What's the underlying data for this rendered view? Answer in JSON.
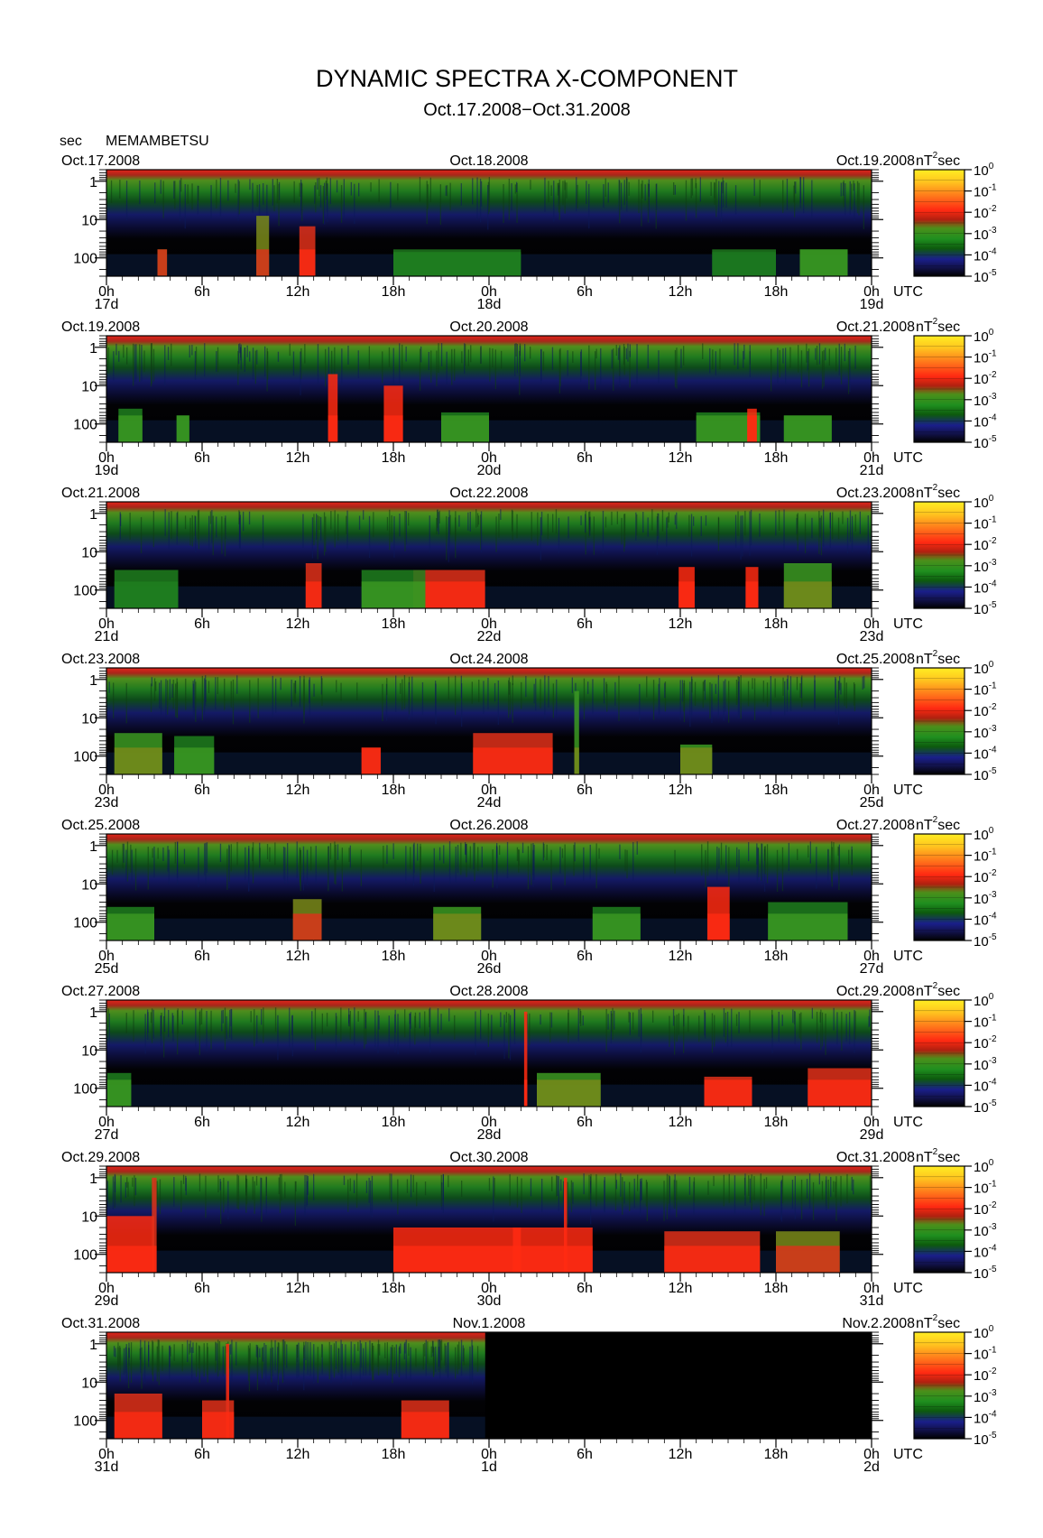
{
  "figure": {
    "title": "DYNAMIC SPECTRA X-COMPONENT",
    "subtitle": "Oct.17.2008−Oct.31.2008",
    "y_unit_label": "sec",
    "station": "MEMAMBETSU",
    "time_zone_label": "UTC",
    "colorbar_unit": "nT",
    "colorbar_unit_exp": "2",
    "colorbar_unit_suffix": "sec"
  },
  "chart_data": {
    "type": "heatmap",
    "title": "DYNAMIC SPECTRA X-COMPONENT",
    "subtitle": "Oct.17.2008−Oct.31.2008",
    "ylabel": "sec",
    "y_scale": "log",
    "y_range_sec": [
      0.5,
      300
    ],
    "y_ticks": [
      {
        "label": "1",
        "value": 1
      },
      {
        "label": "10",
        "value": 10
      },
      {
        "label": "100",
        "value": 100
      }
    ],
    "x_ticks_hours": [
      "0h",
      "6h",
      "12h",
      "18h",
      "0h",
      "6h",
      "12h",
      "18h",
      "0h"
    ],
    "colorbar": {
      "unit": "nT^2 sec",
      "scale": "log",
      "range": [
        1e-05,
        1
      ],
      "tick_mantissa": "10",
      "tick_exponents": [
        "0",
        "-1",
        "-2",
        "-3",
        "-4",
        "-5"
      ],
      "colormap": [
        "#000000",
        "#101040",
        "#1a1f8a",
        "#0d5a0d",
        "#1f8f1f",
        "#4c8f1a",
        "#b02010",
        "#ff2a12",
        "#ff6a1a",
        "#ffc21f",
        "#ffee22"
      ]
    },
    "panels": [
      {
        "left_date": "Oct.17.2008",
        "mid_date": "Oct.18.2008",
        "right_date": "Oct.19.2008",
        "day_labels": [
          "17d",
          "18d",
          "19d"
        ],
        "data_end_fraction": 1.0,
        "events": [
          {
            "hour": 3.5,
            "width_h": 0.6,
            "level": 0.75,
            "top_period": 60
          },
          {
            "hour": 9.8,
            "width_h": 0.8,
            "level": 0.7,
            "top_period": 8
          },
          {
            "hour": 12.6,
            "width_h": 1.0,
            "level": 0.8,
            "top_period": 15
          },
          {
            "hour": 22,
            "width_h": 8.0,
            "level": 0.45,
            "top_period": 70
          },
          {
            "hour": 40,
            "width_h": 4.0,
            "level": 0.35,
            "top_period": 70
          },
          {
            "hour": 45,
            "width_h": 3.0,
            "level": 0.5,
            "top_period": 60
          }
        ]
      },
      {
        "left_date": "Oct.19.2008",
        "mid_date": "Oct.20.2008",
        "right_date": "Oct.21.2008",
        "day_labels": [
          "19d",
          "20d",
          "21d"
        ],
        "data_end_fraction": 1.0,
        "events": [
          {
            "hour": 1.5,
            "width_h": 1.5,
            "level": 0.55,
            "top_period": 40
          },
          {
            "hour": 4.8,
            "width_h": 0.8,
            "level": 0.55,
            "top_period": 60
          },
          {
            "hour": 14.2,
            "width_h": 0.6,
            "level": 0.95,
            "top_period": 5
          },
          {
            "hour": 18.0,
            "width_h": 1.2,
            "level": 0.9,
            "top_period": 10
          },
          {
            "hour": 22.5,
            "width_h": 3.0,
            "level": 0.5,
            "top_period": 50
          },
          {
            "hour": 39,
            "width_h": 4.0,
            "level": 0.5,
            "top_period": 50
          },
          {
            "hour": 40.5,
            "width_h": 0.6,
            "level": 0.95,
            "top_period": 40
          },
          {
            "hour": 44,
            "width_h": 3.0,
            "level": 0.55,
            "top_period": 60
          }
        ]
      },
      {
        "left_date": "Oct.21.2008",
        "mid_date": "Oct.22.2008",
        "right_date": "Oct.23.2008",
        "day_labels": [
          "21d",
          "22d",
          "23d"
        ],
        "data_end_fraction": 1.0,
        "events": [
          {
            "hour": 2.5,
            "width_h": 4.0,
            "level": 0.45,
            "top_period": 30
          },
          {
            "hour": 13,
            "width_h": 1.0,
            "level": 0.85,
            "top_period": 20
          },
          {
            "hour": 21.5,
            "width_h": 4.5,
            "level": 0.85,
            "top_period": 30
          },
          {
            "hour": 18,
            "width_h": 4.0,
            "level": 0.5,
            "top_period": 30
          },
          {
            "hour": 36.4,
            "width_h": 1.0,
            "level": 0.9,
            "top_period": 25
          },
          {
            "hour": 40.5,
            "width_h": 0.8,
            "level": 0.9,
            "top_period": 25
          },
          {
            "hour": 44,
            "width_h": 3.0,
            "level": 0.6,
            "top_period": 20
          }
        ]
      },
      {
        "left_date": "Oct.23.2008",
        "mid_date": "Oct.24.2008",
        "right_date": "Oct.25.2008",
        "day_labels": [
          "23d",
          "24d",
          "25d"
        ],
        "data_end_fraction": 1.0,
        "events": [
          {
            "hour": 2,
            "width_h": 3.0,
            "level": 0.6,
            "top_period": 25
          },
          {
            "hour": 5.5,
            "width_h": 2.5,
            "level": 0.55,
            "top_period": 30
          },
          {
            "hour": 16.6,
            "width_h": 1.2,
            "level": 0.85,
            "top_period": 60
          },
          {
            "hour": 25.5,
            "width_h": 5.0,
            "level": 0.8,
            "top_period": 25
          },
          {
            "hour": 29.5,
            "width_h": 0.3,
            "level": 0.6,
            "top_period": 2
          },
          {
            "hour": 37,
            "width_h": 2.0,
            "level": 0.6,
            "top_period": 50
          }
        ]
      },
      {
        "left_date": "Oct.25.2008",
        "mid_date": "Oct.26.2008",
        "right_date": "Oct.27.2008",
        "day_labels": [
          "25d",
          "26d",
          "27d"
        ],
        "data_end_fraction": 1.0,
        "events": [
          {
            "hour": 1.5,
            "width_h": 3.0,
            "level": 0.55,
            "top_period": 40
          },
          {
            "hour": 12.6,
            "width_h": 1.8,
            "level": 0.75,
            "top_period": 25
          },
          {
            "hour": 22,
            "width_h": 3.0,
            "level": 0.6,
            "top_period": 40
          },
          {
            "hour": 32,
            "width_h": 3.0,
            "level": 0.5,
            "top_period": 40
          },
          {
            "hour": 38.4,
            "width_h": 1.4,
            "level": 0.9,
            "top_period": 12
          },
          {
            "hour": 44,
            "width_h": 5.0,
            "level": 0.5,
            "top_period": 30
          }
        ]
      },
      {
        "left_date": "Oct.27.2008",
        "mid_date": "Oct.28.2008",
        "right_date": "Oct.29.2008",
        "day_labels": [
          "27d",
          "28d",
          "29d"
        ],
        "data_end_fraction": 1.0,
        "events": [
          {
            "hour": 0.8,
            "width_h": 1.5,
            "level": 0.5,
            "top_period": 40
          },
          {
            "hour": 26.3,
            "width_h": 0.2,
            "level": 0.9,
            "top_period": 1
          },
          {
            "hour": 29,
            "width_h": 4.0,
            "level": 0.6,
            "top_period": 40
          },
          {
            "hour": 39,
            "width_h": 3.0,
            "level": 0.85,
            "top_period": 50
          },
          {
            "hour": 46,
            "width_h": 4.0,
            "level": 0.8,
            "top_period": 30
          }
        ]
      },
      {
        "left_date": "Oct.29.2008",
        "mid_date": "Oct.30.2008",
        "right_date": "Oct.31.2008",
        "day_labels": [
          "29d",
          "30d",
          "31d"
        ],
        "data_end_fraction": 1.0,
        "events": [
          {
            "hour": 1.5,
            "width_h": 3.0,
            "level": 0.95,
            "top_period": 10
          },
          {
            "hour": 3,
            "width_h": 0.3,
            "level": 0.85,
            "top_period": 1
          },
          {
            "hour": 22,
            "width_h": 8.0,
            "level": 0.9,
            "top_period": 20
          },
          {
            "hour": 28,
            "width_h": 5.0,
            "level": 0.9,
            "top_period": 20
          },
          {
            "hour": 28.8,
            "width_h": 0.2,
            "level": 0.95,
            "top_period": 1
          },
          {
            "hour": 38,
            "width_h": 6.0,
            "level": 0.8,
            "top_period": 25
          },
          {
            "hour": 44,
            "width_h": 4.0,
            "level": 0.75,
            "top_period": 25
          }
        ]
      },
      {
        "left_date": "Oct.31.2008",
        "mid_date": "Nov.1.2008",
        "right_date": "Nov.2.2008",
        "day_labels": [
          "31d",
          "1d",
          "2d"
        ],
        "data_end_fraction": 0.495,
        "events": [
          {
            "hour": 2,
            "width_h": 3.0,
            "level": 0.85,
            "top_period": 20
          },
          {
            "hour": 7.6,
            "width_h": 0.2,
            "level": 0.9,
            "top_period": 1
          },
          {
            "hour": 7,
            "width_h": 2.0,
            "level": 0.8,
            "top_period": 30
          },
          {
            "hour": 20,
            "width_h": 3.0,
            "level": 0.85,
            "top_period": 30
          }
        ]
      }
    ]
  }
}
